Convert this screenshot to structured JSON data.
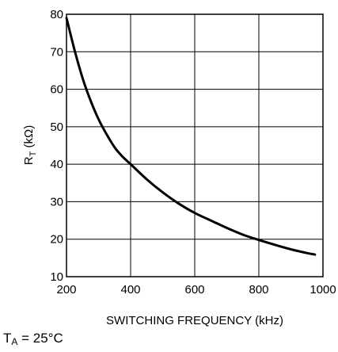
{
  "chart_data": {
    "type": "line",
    "xlabel": "SWITCHING FREQUENCY (kHz)",
    "ylabel": {
      "main": "R",
      "sub": "T",
      "rest": " (kΩ)"
    },
    "xlim": [
      200,
      1000
    ],
    "ylim": [
      10,
      80
    ],
    "x_ticks": [
      "200",
      "400",
      "600",
      "800",
      "1000"
    ],
    "y_ticks": [
      "10",
      "20",
      "30",
      "40",
      "50",
      "60",
      "70",
      "80"
    ],
    "grid": true,
    "series": [
      {
        "x": [
          200,
          225,
          250,
          275,
          300,
          325,
          350,
          375,
          400,
          450,
          500,
          550,
          600,
          650,
          700,
          750,
          800,
          850,
          900,
          950,
          975
        ],
        "y": [
          79,
          70.5,
          63,
          57,
          52,
          48,
          44.5,
          42,
          40,
          36,
          32.5,
          29.5,
          27,
          25,
          23,
          21.2,
          19.8,
          18.5,
          17.3,
          16.3,
          15.9
        ]
      }
    ],
    "colors": {
      "line": "#000000",
      "grid": "#000000"
    }
  },
  "footnote": {
    "main": "T",
    "sub": "A",
    "rest": " = 25°C"
  }
}
